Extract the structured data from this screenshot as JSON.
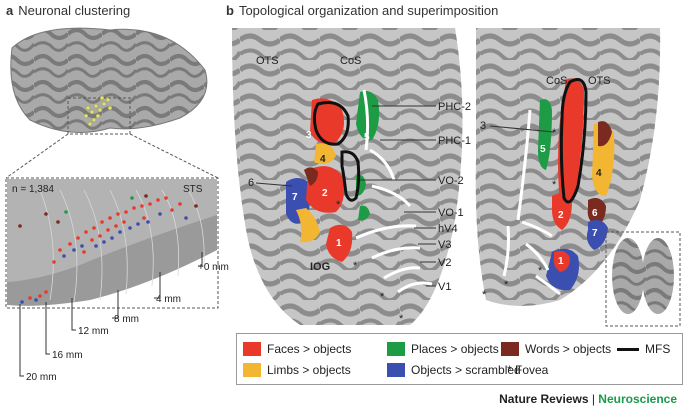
{
  "panel_a": {
    "letter": "a",
    "title": "Neuronal clustering",
    "n_label": "n = 1,384",
    "sts_label": "STS",
    "distances": [
      "+0 mm",
      "4 mm",
      "8 mm",
      "12 mm",
      "16 mm",
      "20 mm"
    ]
  },
  "panel_b": {
    "letter": "b",
    "title": "Topological organization and superimposition",
    "left_labels": {
      "ots": "OTS",
      "cos": "CoS",
      "iog": "IOG",
      "six": "6"
    },
    "right_labels": {
      "cos": "CoS",
      "ots": "OTS",
      "three": "3"
    },
    "roi_labels": [
      "PHC-2",
      "PHC-1",
      "VO-2",
      "VO-1",
      "hV4",
      "V3",
      "V2",
      "V1"
    ],
    "patch_numbers": {
      "n1": "1",
      "n2": "2",
      "n3": "3",
      "n4": "4",
      "n5": "5",
      "n6": "6",
      "n7": "7"
    }
  },
  "legend": {
    "faces": "Faces > objects",
    "places": "Places > objects",
    "words": "Words > objects",
    "mfs": "MFS",
    "limbs": "Limbs > objects",
    "objects": "Objects > scrambled",
    "fovea": "* Fovea"
  },
  "colors": {
    "faces": "#e8392b",
    "places": "#1e9b45",
    "words": "#7a2a1e",
    "limbs": "#f2b632",
    "objects": "#3a4fb0",
    "cortex_light": "#c9c9c9",
    "cortex_dark": "#8a8a8a"
  },
  "credit": {
    "journal": "Nature Reviews",
    "separator": " | ",
    "subject": "Neuroscience"
  }
}
